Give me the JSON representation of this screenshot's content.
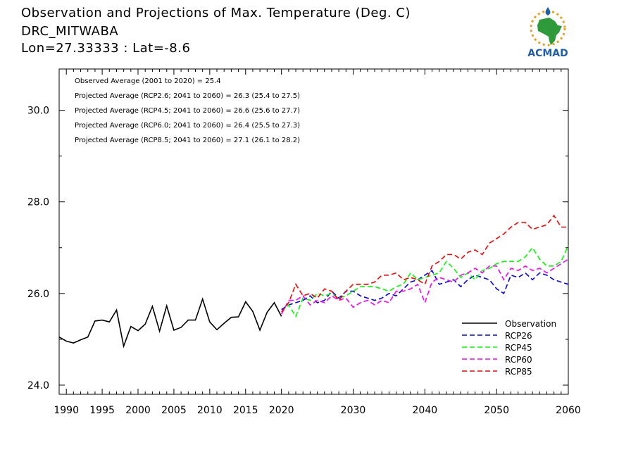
{
  "header": {
    "title": "Observation and Projections of Max. Temperature (Deg. C)",
    "station": "DRC_MITWABA",
    "location": "Lon=27.33333 : Lat=-8.6"
  },
  "logo": {
    "text": "ACMAD",
    "colors": {
      "text": "#1f5fa8",
      "africa": "#2e9a3a",
      "sun": "#e8a020",
      "drop": "#1f5fa8"
    }
  },
  "chart_data": {
    "type": "line",
    "xlim": [
      1989,
      2060
    ],
    "ylim": [
      23.8,
      30.9
    ],
    "x_ticks": [
      1990,
      1995,
      2000,
      2005,
      2010,
      2015,
      2020,
      2030,
      2040,
      2050,
      2060
    ],
    "y_ticks": [
      24.0,
      26.0,
      28.0,
      30.0
    ],
    "y_tick_labels": [
      "24.0",
      "26.0",
      "28.0",
      "30.0"
    ],
    "annotations": [
      "Observed Average (2001 to 2020) = 25.4",
      "Projected Average (RCP2.6; 2041 to 2060) = 26.3 (25.4 to 27.5)",
      "Projected Average (RCP4.5; 2041 to 2060) = 26.6 (25.6 to 27.7)",
      "Projected Average (RCP6.0; 2041 to 2060) = 26.4 (25.5 to 27.3)",
      "Projected Average (RCP8.5; 2041 to 2060) = 27.1 (26.1 to 28.2)"
    ],
    "legend_position": "bottom-right",
    "series": [
      {
        "name": "Observation",
        "color": "#000000",
        "dash": "solid",
        "x": [
          1989,
          1990,
          1991,
          1992,
          1993,
          1994,
          1995,
          1996,
          1997,
          1998,
          1999,
          2000,
          2001,
          2002,
          2003,
          2004,
          2005,
          2006,
          2007,
          2008,
          2009,
          2010,
          2011,
          2012,
          2013,
          2014,
          2015,
          2016,
          2017,
          2018,
          2019,
          2020
        ],
        "y": [
          25.05,
          24.96,
          24.92,
          24.99,
          25.05,
          25.4,
          25.42,
          25.38,
          25.64,
          24.85,
          25.28,
          25.19,
          25.33,
          25.72,
          25.18,
          25.73,
          25.2,
          25.26,
          25.42,
          25.42,
          25.88,
          25.38,
          25.21,
          25.35,
          25.48,
          25.49,
          25.82,
          25.61,
          25.2,
          25.59,
          25.8,
          25.5
        ]
      },
      {
        "name": "RCP26",
        "color": "#0000ff",
        "dash": "dashed",
        "x": [
          2020,
          2021,
          2022,
          2023,
          2024,
          2025,
          2026,
          2027,
          2028,
          2029,
          2030,
          2031,
          2032,
          2033,
          2034,
          2035,
          2036,
          2037,
          2038,
          2039,
          2040,
          2041,
          2042,
          2043,
          2044,
          2045,
          2046,
          2047,
          2048,
          2049,
          2050,
          2051,
          2052,
          2053,
          2054,
          2055,
          2056,
          2057,
          2058,
          2059,
          2060
        ],
        "y": [
          25.65,
          25.75,
          25.8,
          25.85,
          25.95,
          25.8,
          25.85,
          26.05,
          25.9,
          26.05,
          26.05,
          25.95,
          25.9,
          25.85,
          25.9,
          26.0,
          25.95,
          26.1,
          26.25,
          26.3,
          26.4,
          26.5,
          26.2,
          26.25,
          26.3,
          26.15,
          26.3,
          26.4,
          26.35,
          26.3,
          26.1,
          26.0,
          26.4,
          26.35,
          26.45,
          26.3,
          26.45,
          26.4,
          26.3,
          26.25,
          26.2
        ]
      },
      {
        "name": "RCP45",
        "color": "#00ff00",
        "dash": "dashed",
        "x": [
          2020,
          2021,
          2022,
          2023,
          2024,
          2025,
          2026,
          2027,
          2028,
          2029,
          2030,
          2031,
          2032,
          2033,
          2034,
          2035,
          2036,
          2037,
          2038,
          2039,
          2040,
          2041,
          2042,
          2043,
          2044,
          2045,
          2046,
          2047,
          2048,
          2049,
          2050,
          2051,
          2052,
          2053,
          2054,
          2055,
          2056,
          2057,
          2058,
          2059,
          2060
        ],
        "y": [
          25.6,
          25.75,
          25.5,
          25.9,
          25.85,
          26.0,
          25.95,
          26.0,
          25.9,
          25.95,
          26.05,
          26.15,
          26.15,
          26.15,
          26.1,
          26.05,
          26.15,
          26.2,
          26.45,
          26.3,
          26.35,
          26.4,
          26.45,
          26.7,
          26.55,
          26.35,
          26.45,
          26.3,
          26.5,
          26.55,
          26.65,
          26.7,
          26.7,
          26.7,
          26.8,
          27.0,
          26.75,
          26.6,
          26.6,
          26.7,
          27.05
        ]
      },
      {
        "name": "RCP60",
        "color": "#ff00ff",
        "dash": "dashed",
        "x": [
          2020,
          2021,
          2022,
          2023,
          2024,
          2025,
          2026,
          2027,
          2028,
          2029,
          2030,
          2031,
          2032,
          2033,
          2034,
          2035,
          2036,
          2037,
          2038,
          2039,
          2040,
          2041,
          2042,
          2043,
          2044,
          2045,
          2046,
          2047,
          2048,
          2049,
          2050,
          2051,
          2052,
          2053,
          2054,
          2055,
          2056,
          2057,
          2058,
          2059,
          2060
        ],
        "y": [
          25.55,
          25.85,
          25.85,
          25.95,
          25.75,
          25.85,
          25.8,
          25.95,
          25.85,
          25.9,
          25.7,
          25.8,
          25.85,
          25.75,
          25.85,
          25.8,
          26.05,
          26.05,
          26.1,
          26.2,
          25.8,
          26.25,
          26.35,
          26.3,
          26.25,
          26.4,
          26.45,
          26.55,
          26.45,
          26.6,
          26.6,
          26.3,
          26.55,
          26.5,
          26.6,
          26.5,
          26.55,
          26.45,
          26.55,
          26.65,
          26.75
        ]
      },
      {
        "name": "RCP85",
        "color": "#ff0000",
        "dash": "dashed",
        "x": [
          2020,
          2021,
          2022,
          2023,
          2024,
          2025,
          2026,
          2027,
          2028,
          2029,
          2030,
          2031,
          2032,
          2033,
          2034,
          2035,
          2036,
          2037,
          2038,
          2039,
          2040,
          2041,
          2042,
          2043,
          2044,
          2045,
          2046,
          2047,
          2048,
          2049,
          2050,
          2051,
          2052,
          2053,
          2054,
          2055,
          2056,
          2057,
          2058,
          2059,
          2060
        ],
        "y": [
          25.6,
          25.8,
          26.2,
          25.95,
          26.0,
          25.9,
          26.1,
          26.05,
          25.85,
          26.05,
          26.2,
          26.2,
          26.2,
          26.25,
          26.4,
          26.4,
          26.45,
          26.3,
          26.35,
          26.3,
          26.2,
          26.6,
          26.7,
          26.85,
          26.85,
          26.75,
          26.9,
          26.95,
          26.85,
          27.1,
          27.2,
          27.3,
          27.45,
          27.55,
          27.55,
          27.4,
          27.45,
          27.5,
          27.7,
          27.45,
          27.45
        ]
      }
    ]
  }
}
